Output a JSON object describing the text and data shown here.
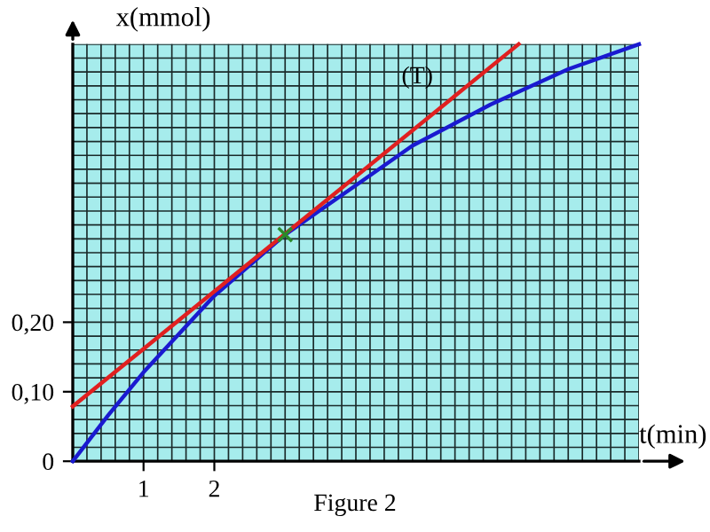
{
  "chart_data": {
    "type": "line",
    "xlabel": "t(min)",
    "ylabel": "x(mmol)",
    "xlim": [
      0,
      8
    ],
    "ylim": [
      0,
      0.6
    ],
    "xticks": [
      1,
      2
    ],
    "yticks": [
      {
        "value": 0,
        "label": "0"
      },
      {
        "value": 0.1,
        "label": "0,10"
      },
      {
        "value": 0.2,
        "label": "0,20"
      }
    ],
    "grid": true,
    "legend": false,
    "tick_labels": "xy",
    "series": [
      {
        "type": "line",
        "color": "#1a1ad0",
        "x": [
          0,
          0.5,
          1,
          2,
          3,
          4,
          4.8,
          5.9,
          7,
          8
        ],
        "values": [
          0,
          0.066,
          0.128,
          0.238,
          0.326,
          0.397,
          0.454,
          0.513,
          0.564,
          0.6
        ]
      },
      {
        "type": "line",
        "name": "(T)",
        "color": "#e02020",
        "x": [
          0,
          6.3
        ],
        "values": [
          0.079,
          0.6
        ]
      },
      {
        "type": "scatter",
        "color": "#2a8a2a",
        "marker": "cross",
        "x": [
          3
        ],
        "values": [
          0.326
        ]
      }
    ],
    "annotations": [
      "Figure 2"
    ]
  }
}
